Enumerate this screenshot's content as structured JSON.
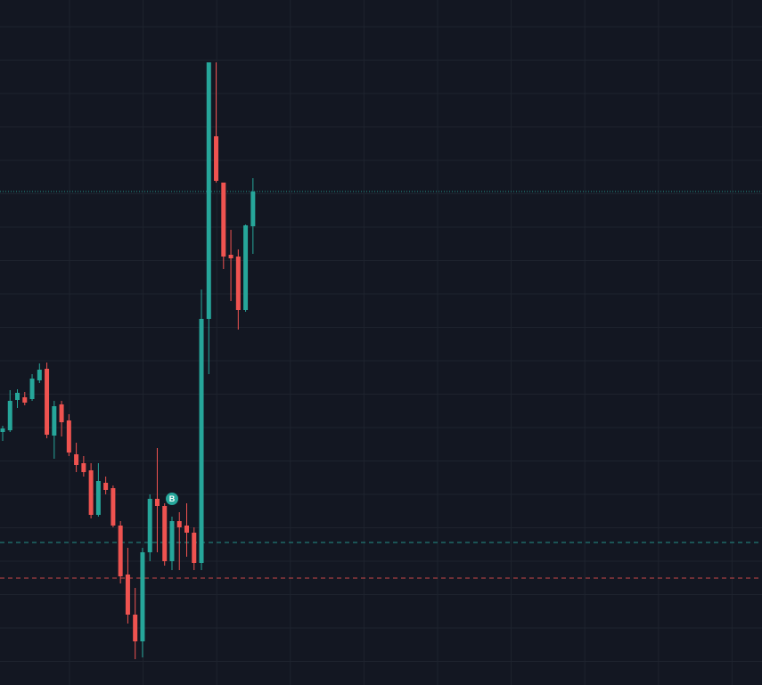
{
  "chart_data": {
    "type": "candlestick",
    "ylim": [
      0,
      769
    ],
    "up_color": "#26a69a",
    "down_color": "#ef5350",
    "grid": true,
    "series": {
      "open": [
        284,
        286,
        320,
        323,
        321,
        342,
        355,
        280,
        315,
        297,
        259,
        249,
        241,
        191,
        227,
        221,
        179,
        124,
        79,
        49,
        149,
        209,
        201,
        139,
        184,
        179,
        171,
        137,
        411,
        616,
        564,
        483,
        481,
        421,
        515
      ],
      "high": [
        291,
        331,
        332,
        329,
        349,
        361,
        362,
        319,
        319,
        304,
        272,
        257,
        249,
        249,
        234,
        224,
        184,
        154,
        109,
        154,
        214,
        266,
        204,
        189,
        194,
        204,
        177,
        444,
        699,
        699,
        564,
        511,
        489,
        517,
        569
      ],
      "low": [
        274,
        284,
        311,
        314,
        319,
        339,
        277,
        254,
        279,
        257,
        239,
        234,
        187,
        189,
        214,
        177,
        114,
        69,
        29,
        31,
        139,
        149,
        134,
        129,
        129,
        144,
        129,
        129,
        349,
        564,
        467,
        431,
        399,
        419,
        484
      ],
      "close": [
        288,
        319,
        328,
        317,
        344,
        354,
        281,
        313,
        295,
        261,
        247,
        239,
        191,
        229,
        219,
        179,
        122,
        79,
        49,
        149,
        209,
        201,
        139,
        184,
        177,
        171,
        137,
        411,
        699,
        566,
        481,
        479,
        421,
        516,
        554
      ]
    },
    "price_lines": [
      {
        "value": 554,
        "color": "#26a69a",
        "style": "dotted"
      },
      {
        "value": 160,
        "color": "#26a69a",
        "style": "dashed"
      },
      {
        "value": 120,
        "color": "#ef5350",
        "style": "dashed"
      }
    ],
    "markers": [
      {
        "text": "B",
        "value": 209
      }
    ]
  }
}
